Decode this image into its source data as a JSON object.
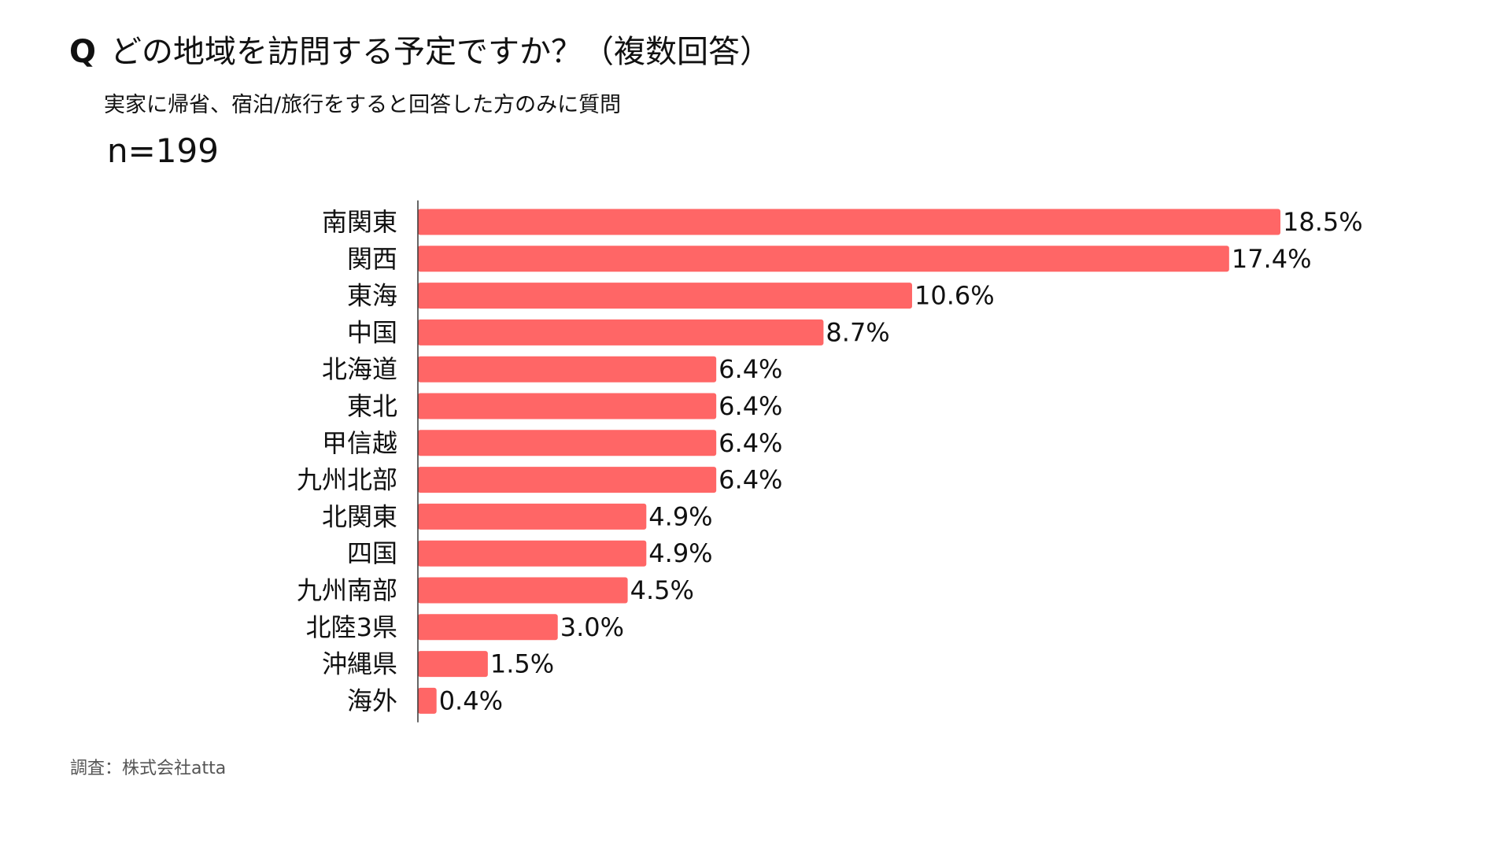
{
  "header": {
    "q_mark": "Q",
    "question": "どの地域を訪問する予定ですか？（複数回答）",
    "note": "実家に帰省、宿泊/旅行をすると回答した方のみに質問",
    "sample_size": "n=199"
  },
  "footer": {
    "source": "調査：株式会社atta"
  },
  "colors": {
    "bar": "#ff6666",
    "axis": "#333333",
    "text": "#111111"
  },
  "chart_data": {
    "type": "bar",
    "orientation": "horizontal",
    "categories": [
      "南関東",
      "関西",
      "東海",
      "中国",
      "北海道",
      "東北",
      "甲信越",
      "九州北部",
      "北関東",
      "四国",
      "九州南部",
      "北陸3県",
      "沖縄県",
      "海外"
    ],
    "values": [
      18.5,
      17.4,
      10.6,
      8.7,
      6.4,
      6.4,
      6.4,
      6.4,
      4.9,
      4.9,
      4.5,
      3.0,
      1.5,
      0.4
    ],
    "value_labels": [
      "18.5%",
      "17.4%",
      "10.6%",
      "8.7%",
      "6.4%",
      "6.4%",
      "6.4%",
      "6.4%",
      "4.9%",
      "4.9%",
      "4.5%",
      "3.0%",
      "1.5%",
      "0.4%"
    ],
    "unit": "%",
    "xlim": [
      0,
      20
    ],
    "grid": false,
    "legend": "none"
  }
}
